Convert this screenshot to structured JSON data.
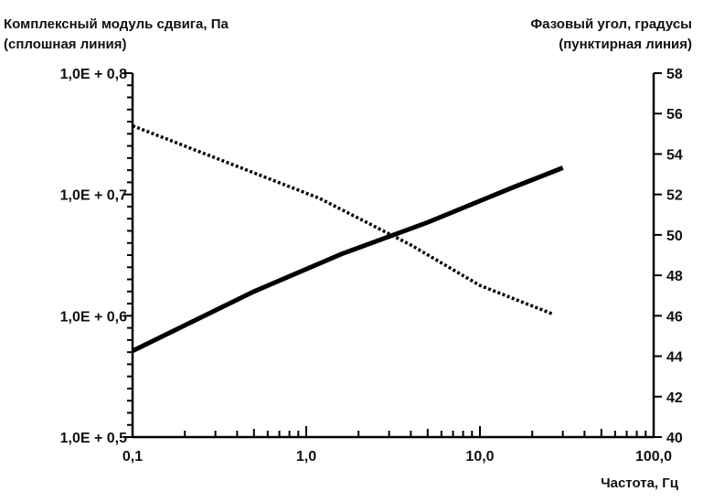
{
  "chart_data": {
    "type": "line",
    "left_axis_title": [
      "Комплексный модуль сдвига, Па",
      "(сплошная линия)"
    ],
    "right_axis_title": [
      "Фазовый угол, градусы",
      "(пунктирная линия)"
    ],
    "xlabel": "Частота, Гц",
    "x_scale": "log",
    "xlim": [
      0.1,
      100.0
    ],
    "x_tick_labels": [
      "0,1",
      "1,0",
      "10,0",
      "100,0"
    ],
    "y_left_lim": [
      0.5,
      0.8
    ],
    "y_left_tick_labels": [
      "1,0E + 0,5",
      "1,0E + 0,6",
      "1,0E + 0,7",
      "1,0E + 0,8"
    ],
    "y_right_lim": [
      40,
      58
    ],
    "y_right_tick_labels": [
      "40",
      "42",
      "44",
      "46",
      "48",
      "50",
      "52",
      "54",
      "56",
      "58"
    ],
    "grid": false,
    "series": [
      {
        "style": "solid",
        "axis": "left",
        "color": "#000000",
        "x": [
          0.1,
          0.5,
          1.6,
          5.0,
          15.0,
          30.0
        ],
        "y": [
          0.571,
          0.62,
          0.651,
          0.677,
          0.705,
          0.722
        ]
      },
      {
        "style": "dotted",
        "axis": "right",
        "color": "#000000",
        "x": [
          0.1,
          1.2,
          4.0,
          10.0,
          26.0
        ],
        "y": [
          55.4,
          51.8,
          49.5,
          47.5,
          46.1
        ]
      }
    ]
  }
}
